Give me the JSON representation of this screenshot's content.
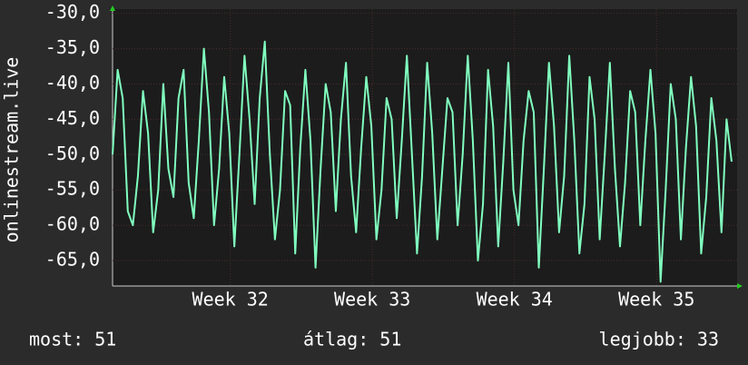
{
  "chart_data": {
    "type": "line",
    "ylabel": "onlinestream.live",
    "x": [
      0,
      0.25,
      0.5,
      0.75,
      1,
      1.25,
      1.5,
      1.75,
      2,
      2.25,
      2.5,
      2.75,
      3,
      3.25,
      3.5,
      3.75,
      4,
      4.25,
      4.5,
      4.75,
      5,
      5.25,
      5.5,
      5.75,
      6,
      6.25,
      6.5,
      6.75,
      7,
      7.25,
      7.5,
      7.75,
      8,
      8.25,
      8.5,
      8.75,
      9,
      9.25,
      9.5,
      9.75,
      10,
      10.25,
      10.5,
      10.75,
      11,
      11.25,
      11.5,
      11.75,
      12,
      12.25,
      12.5,
      12.75,
      13,
      13.25,
      13.5,
      13.75,
      14,
      14.25,
      14.5,
      14.75,
      15,
      15.25,
      15.5,
      15.75,
      16,
      16.25,
      16.5,
      16.75,
      17,
      17.25,
      17.5,
      17.75,
      18,
      18.25,
      18.5,
      18.75,
      19,
      19.25,
      19.5,
      19.75,
      20,
      20.25,
      20.5,
      20.75,
      21,
      21.25,
      21.5,
      21.75,
      22,
      22.25,
      22.5,
      22.75,
      23,
      23.25,
      23.5,
      23.75,
      24,
      24.25,
      24.5,
      24.75,
      25,
      25.25,
      25.5,
      25.75,
      26,
      26.25,
      26.5,
      26.75,
      27,
      27.25,
      27.5,
      27.75,
      28,
      28.25,
      28.5,
      28.75,
      29,
      29.25,
      29.5,
      29.75,
      30,
      30.25,
      30.5
    ],
    "series": [
      {
        "name": "onlinestream.live",
        "color": "#80ffbf",
        "values": [
          -50,
          -38,
          -42,
          -58,
          -60,
          -53,
          -41,
          -47,
          -61,
          -55,
          -40,
          -52,
          -56,
          -42,
          -38,
          -54,
          -59,
          -48,
          -35,
          -44,
          -60,
          -52,
          -39,
          -47,
          -63,
          -50,
          -36,
          -45,
          -57,
          -42,
          -34,
          -50,
          -62,
          -55,
          -41,
          -43,
          -64,
          -49,
          -38,
          -48,
          -66,
          -52,
          -40,
          -44,
          -58,
          -45,
          -37,
          -53,
          -61,
          -49,
          -39,
          -46,
          -62,
          -55,
          -42,
          -45,
          -59,
          -48,
          -36,
          -50,
          -64,
          -53,
          -37,
          -47,
          -62,
          -52,
          -42,
          -44,
          -60,
          -50,
          -36,
          -48,
          -65,
          -57,
          -38,
          -46,
          -63,
          -51,
          -37,
          -55,
          -60,
          -48,
          -41,
          -44,
          -66,
          -52,
          -37,
          -46,
          -61,
          -53,
          -36,
          -48,
          -64,
          -57,
          -39,
          -45,
          -62,
          -50,
          -37,
          -52,
          -63,
          -54,
          -41,
          -44,
          -60,
          -48,
          -38,
          -47,
          -68,
          -55,
          -40,
          -45,
          -62,
          -49,
          -39,
          -46,
          -64,
          -56,
          -42,
          -48,
          -61,
          -45,
          -51
        ]
      }
    ],
    "xlim": [
      0,
      30.77
    ],
    "xticks": [
      {
        "value": 5.8,
        "label": "Week 32"
      },
      {
        "value": 12.8,
        "label": "Week 33"
      },
      {
        "value": 19.8,
        "label": "Week 34"
      },
      {
        "value": 26.8,
        "label": "Week 35"
      }
    ],
    "ylim": [
      -68.6,
      -29.4
    ],
    "yticks": [
      {
        "value": -30,
        "label": "-30,0"
      },
      {
        "value": -35,
        "label": "-35,0"
      },
      {
        "value": -40,
        "label": "-40,0"
      },
      {
        "value": -45,
        "label": "-45,0"
      },
      {
        "value": -50,
        "label": "-50,0"
      },
      {
        "value": -55,
        "label": "-55,0"
      },
      {
        "value": -60,
        "label": "-60,0"
      },
      {
        "value": -65,
        "label": "-65,0"
      }
    ],
    "grid": true,
    "footer": [
      "most: 51",
      "átlag: 51",
      "legjobb: 33"
    ]
  }
}
